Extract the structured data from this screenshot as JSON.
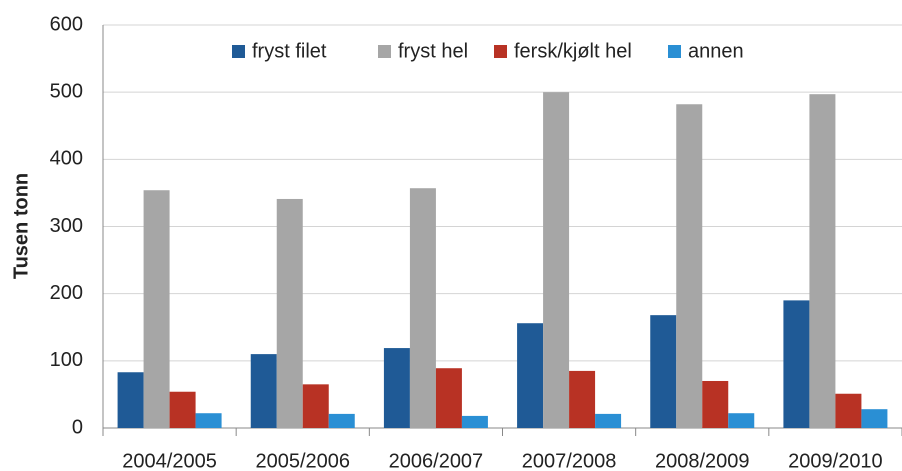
{
  "chart_data": {
    "type": "bar",
    "y_label": "Tusen tonn",
    "categories": [
      "2004/2005",
      "2005/2006",
      "2006/2007",
      "2007/2008",
      "2008/2009",
      "2009/2010"
    ],
    "series": [
      {
        "name": "fryst filet",
        "color": "#1f5a96",
        "values": [
          83,
          110,
          119,
          156,
          168,
          190
        ]
      },
      {
        "name": "fryst hel",
        "color": "#a6a6a6",
        "values": [
          354,
          341,
          357,
          500,
          482,
          497
        ]
      },
      {
        "name": "fersk/kjølt hel",
        "color": "#b83224",
        "values": [
          54,
          65,
          89,
          85,
          70,
          51
        ]
      },
      {
        "name": "annen",
        "color": "#2a8fd4",
        "values": [
          22,
          21,
          18,
          21,
          22,
          28
        ]
      }
    ],
    "ylim": [
      0,
      600
    ],
    "yticks": [
      0,
      100,
      200,
      300,
      400,
      500,
      600
    ],
    "grid": true,
    "legend": "top"
  }
}
